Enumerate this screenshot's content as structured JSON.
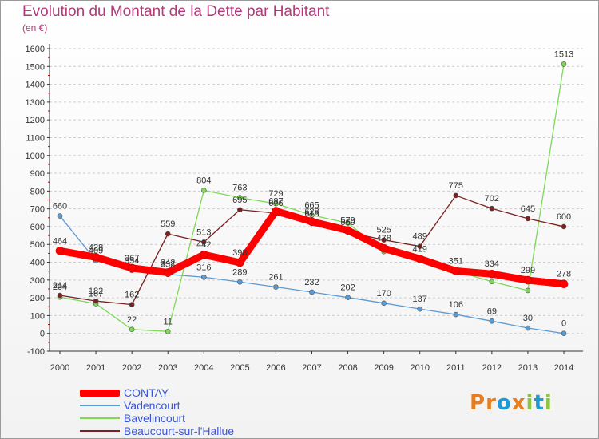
{
  "colors": {
    "title": "#b23a78",
    "legend_text": "#3a56d6",
    "axis": "#333333",
    "grid": "#cccccc"
  },
  "chart_data": {
    "type": "line",
    "title": "Evolution du Montant de la Dette par Habitant",
    "subtitle": "(en €)",
    "xlabel": "",
    "ylabel": "",
    "x": [
      "2000",
      "2001",
      "2002",
      "2003",
      "2004",
      "2005",
      "2006",
      "2007",
      "2008",
      "2009",
      "2010",
      "2011",
      "2012",
      "2013",
      "2014"
    ],
    "ylim": [
      -100,
      1600
    ],
    "yticks": [
      -100,
      0,
      100,
      200,
      300,
      400,
      500,
      600,
      700,
      800,
      900,
      1000,
      1100,
      1200,
      1300,
      1400,
      1500,
      1600
    ],
    "grid": "horizontal dashed",
    "legend_position": "bottom-left",
    "series": [
      {
        "name": "CONTAY",
        "color": "#ff0000",
        "values": [
          464,
          428,
          367,
          342,
          442,
          398,
          687,
          628,
          579,
          478,
          419,
          351,
          334,
          299,
          278
        ],
        "labels": [
          "464",
          "428",
          "367",
          "342",
          "442",
          "398",
          "687",
          "628",
          "579",
          "478",
          "419",
          "351",
          "334",
          "299",
          "278"
        ]
      },
      {
        "name": "Vadencourt",
        "color": "#5b9bd5",
        "values": [
          660,
          409,
          354,
          332,
          316,
          289,
          261,
          232,
          202,
          170,
          137,
          106,
          69,
          30,
          0
        ],
        "labels": [
          "660",
          "409",
          "354",
          "332",
          "316",
          "289",
          "261",
          "232",
          "202",
          "170",
          "137",
          "106",
          "69",
          "30",
          "0"
        ]
      },
      {
        "name": "Bavelincourt",
        "color": "#7ed957",
        "values": [
          204,
          167,
          22,
          11,
          804,
          763,
          729,
          665,
          620,
          460,
          419,
          351,
          291,
          241,
          1513
        ],
        "labels": [
          "204",
          "167",
          "22",
          "11",
          "804",
          "763",
          "729",
          "665",
          "",
          "",
          "",
          "",
          "",
          "",
          "1513"
        ]
      },
      {
        "name": "Beaucourt-sur-l'Hallue",
        "color": "#7b2020",
        "values": [
          214,
          182,
          162,
          559,
          513,
          695,
          676,
          618,
          569,
          525,
          489,
          775,
          702,
          645,
          600
        ],
        "labels": [
          "214",
          "182",
          "162",
          "559",
          "513",
          "695",
          "676",
          "618",
          "569",
          "525",
          "489",
          "775",
          "702",
          "645",
          "600"
        ]
      }
    ]
  },
  "legend": {
    "items": [
      {
        "label": "CONTAY",
        "color": "#ff0000"
      },
      {
        "label": "Vadencourt",
        "color": "#5b9bd5"
      },
      {
        "label": "Bavelincourt",
        "color": "#7ed957"
      },
      {
        "label": "Beaucourt-sur-l'Hallue",
        "color": "#7b2020"
      }
    ]
  },
  "logo": {
    "text": "Proxiti",
    "letters": [
      {
        "ch": "P",
        "color": "#e87d1e"
      },
      {
        "ch": "r",
        "color": "#e87d1e"
      },
      {
        "ch": "o",
        "color": "#1a9ad6"
      },
      {
        "ch": "x",
        "color": "#e87d1e"
      },
      {
        "ch": "i",
        "color": "#8cc63f"
      },
      {
        "ch": "t",
        "color": "#1a9ad6"
      },
      {
        "ch": "i",
        "color": "#8cc63f"
      }
    ]
  }
}
